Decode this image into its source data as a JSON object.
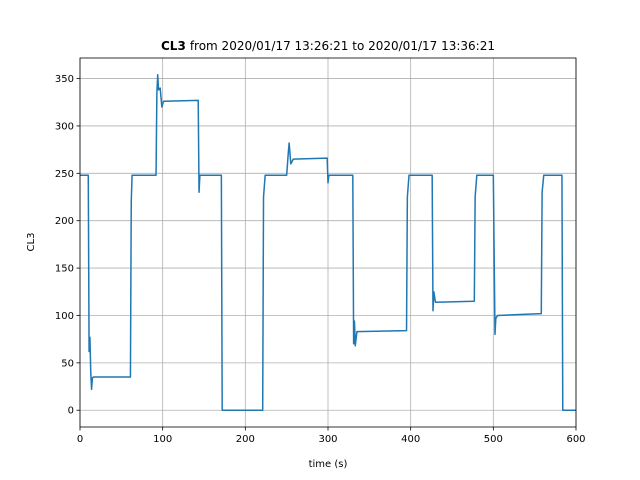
{
  "chart_data": {
    "type": "line",
    "title": {
      "bold": "CL3",
      "text": "from 2020/01/17 13:26:21 to 2020/01/17 13:36:21"
    },
    "xlabel": "time (s)",
    "ylabel": "CL3",
    "x": [
      0,
      10,
      11,
      12,
      13,
      14,
      15,
      16,
      61,
      62,
      63,
      92,
      93,
      94,
      95,
      97,
      99,
      101,
      143,
      144,
      145,
      171,
      172,
      221,
      222,
      224,
      250,
      252,
      253,
      255,
      258,
      299,
      300,
      301,
      330,
      331,
      332,
      333,
      335,
      395,
      396,
      398,
      426,
      427,
      428,
      430,
      477,
      478,
      480,
      500,
      502,
      503,
      505,
      558,
      559,
      561,
      583,
      584,
      600
    ],
    "series": [
      {
        "color": "#1f77b4",
        "values": [
          248,
          248,
          62,
          77,
          40,
          22,
          34,
          35,
          35,
          220,
          248,
          248,
          335,
          354,
          338,
          340,
          320,
          326,
          327,
          230,
          248,
          248,
          0,
          0,
          225,
          248,
          248,
          272,
          282,
          260,
          265,
          266,
          240,
          248,
          248,
          70,
          94,
          68,
          83,
          84,
          225,
          248,
          248,
          105,
          125,
          114,
          115,
          225,
          248,
          248,
          80,
          97,
          100,
          102,
          230,
          248,
          248,
          0,
          0
        ]
      }
    ],
    "xlim": [
      0,
      600
    ],
    "ylim": [
      -17.7,
      371.7
    ],
    "xticks": [
      0,
      100,
      200,
      300,
      400,
      500,
      600
    ],
    "yticks": [
      0,
      50,
      100,
      150,
      200,
      250,
      300,
      350
    ],
    "grid": true
  }
}
